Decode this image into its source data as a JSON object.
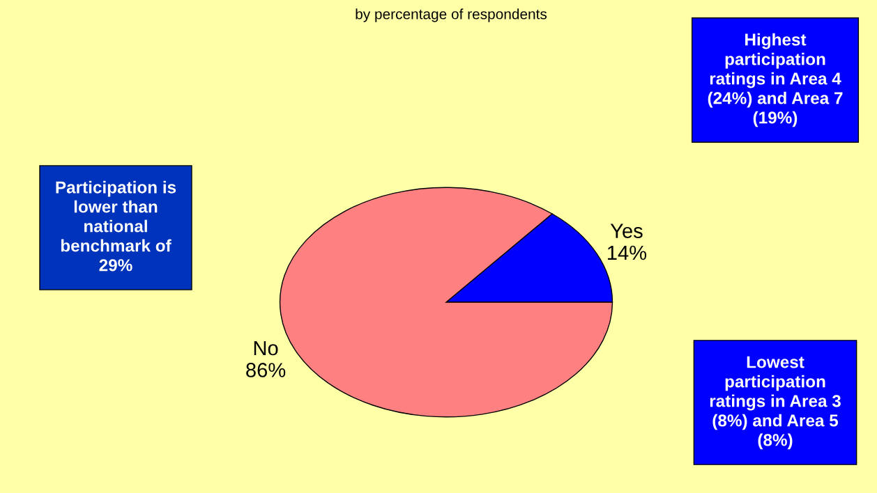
{
  "chart_data": {
    "type": "pie",
    "subtitle": "by percentage of respondents",
    "categories": [
      "Yes",
      "No"
    ],
    "values": [
      14,
      86
    ],
    "colors": [
      "#0000ff",
      "#ff8080"
    ],
    "value_labels": [
      "14%",
      "86%"
    ],
    "annotations": [
      "Participation is\nlower than\nnational\nbenchmark of\n29%",
      "Highest\nparticipation\nratings in Area 4\n(24%) and Area 7\n(19%)",
      "Lowest\nparticipation\nratings in Area 3\n(8%) and Area 5\n(8%)"
    ]
  }
}
